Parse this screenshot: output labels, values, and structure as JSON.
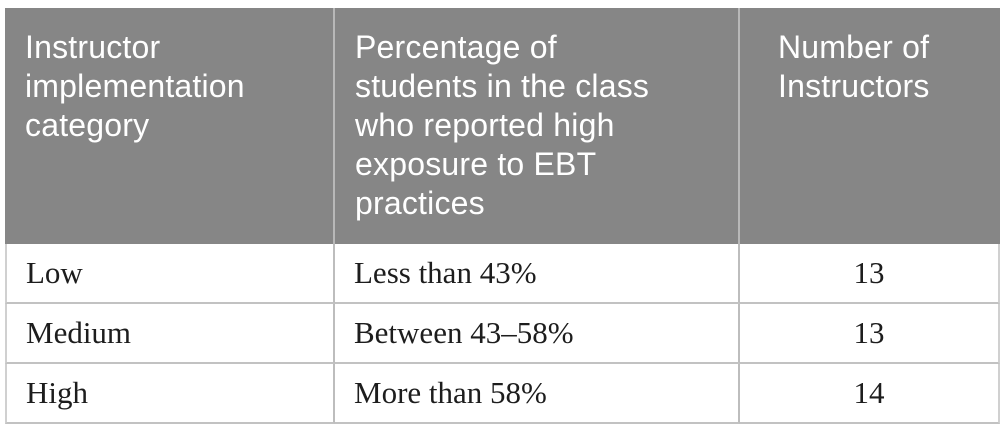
{
  "table": {
    "header": {
      "col1": "Instructor\nimplementation\ncategory",
      "col2": "Percentage of\nstudents in the class\nwho reported high\nexposure to EBT\npractices",
      "col3": "Number of\nInstructors"
    },
    "rows": [
      {
        "category": "Low",
        "percentage": "Less than 43%",
        "count": "13"
      },
      {
        "category": "Medium",
        "percentage": "Between 43–58%",
        "count": "13"
      },
      {
        "category": "High",
        "percentage": "More than 58%",
        "count": "14"
      }
    ],
    "colors": {
      "header_background": "#868686",
      "header_text": "#ffffff",
      "body_text": "#1d1d1d",
      "rule_gray": "#c2c2c2"
    }
  }
}
